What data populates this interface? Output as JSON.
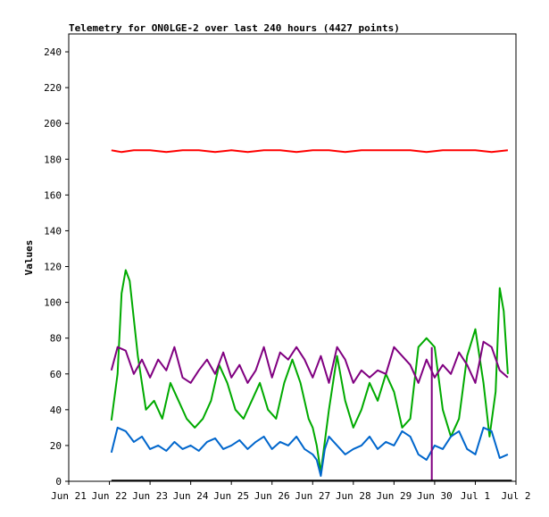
{
  "chart_data": {
    "type": "line",
    "title": "Telemetry for ON0LGE-2 over last 240 hours (4427 points)",
    "xlabel": "",
    "ylabel": "Values",
    "ylim": [
      0,
      250
    ],
    "yticks": [
      0,
      20,
      40,
      60,
      80,
      100,
      120,
      140,
      160,
      180,
      200,
      220,
      240
    ],
    "xlim": [
      0,
      11
    ],
    "xticks": [
      "Jun 21",
      "Jun 22",
      "Jun 23",
      "Jun 24",
      "Jun 25",
      "Jun 26",
      "Jun 27",
      "Jun 28",
      "Jun 29",
      "Jun 30",
      "Jul 1",
      "Jul 2"
    ],
    "grid": false,
    "legend": "none",
    "series": [
      {
        "color": "#ff0000",
        "x": [
          1.05,
          1.3,
          1.6,
          2.0,
          2.4,
          2.8,
          3.2,
          3.6,
          4.0,
          4.4,
          4.8,
          5.2,
          5.6,
          6.0,
          6.4,
          6.8,
          7.2,
          7.6,
          8.0,
          8.4,
          8.8,
          9.2,
          9.6,
          10.0,
          10.4,
          10.8
        ],
        "y": [
          185,
          184,
          185,
          185,
          184,
          185,
          185,
          184,
          185,
          184,
          185,
          185,
          184,
          185,
          185,
          184,
          185,
          185,
          185,
          185,
          184,
          185,
          185,
          185,
          184,
          185
        ]
      },
      {
        "color": "#00aa00",
        "x": [
          1.05,
          1.2,
          1.3,
          1.4,
          1.5,
          1.7,
          1.9,
          2.1,
          2.3,
          2.5,
          2.7,
          2.9,
          3.1,
          3.3,
          3.5,
          3.7,
          3.9,
          4.1,
          4.3,
          4.5,
          4.7,
          4.9,
          5.1,
          5.3,
          5.5,
          5.7,
          5.9,
          6.0,
          6.1,
          6.2,
          6.4,
          6.6,
          6.8,
          7.0,
          7.2,
          7.4,
          7.6,
          7.8,
          8.0,
          8.2,
          8.4,
          8.6,
          8.8,
          9.0,
          9.2,
          9.4,
          9.6,
          9.8,
          10.0,
          10.2,
          10.35,
          10.5,
          10.6,
          10.7,
          10.8
        ],
        "y": [
          34,
          60,
          105,
          118,
          112,
          70,
          40,
          45,
          35,
          55,
          45,
          35,
          30,
          35,
          45,
          65,
          55,
          40,
          35,
          45,
          55,
          40,
          35,
          55,
          68,
          55,
          35,
          30,
          20,
          5,
          40,
          70,
          45,
          30,
          40,
          55,
          45,
          60,
          50,
          30,
          35,
          75,
          80,
          75,
          40,
          25,
          35,
          70,
          85,
          55,
          25,
          50,
          108,
          95,
          60
        ]
      },
      {
        "color": "#800080",
        "x": [
          1.05,
          1.2,
          1.4,
          1.6,
          1.8,
          2.0,
          2.2,
          2.4,
          2.6,
          2.8,
          3.0,
          3.2,
          3.4,
          3.6,
          3.8,
          4.0,
          4.2,
          4.4,
          4.6,
          4.8,
          5.0,
          5.2,
          5.4,
          5.6,
          5.8,
          6.0,
          6.2,
          6.4,
          6.6,
          6.8,
          7.0,
          7.2,
          7.4,
          7.6,
          7.8,
          8.0,
          8.2,
          8.4,
          8.6,
          8.8,
          9.0,
          9.2,
          9.4,
          9.6,
          9.8,
          10.0,
          10.2,
          10.4,
          10.6,
          10.8
        ],
        "y": [
          62,
          75,
          73,
          60,
          68,
          58,
          68,
          62,
          75,
          58,
          55,
          62,
          68,
          60,
          72,
          58,
          65,
          55,
          62,
          75,
          58,
          72,
          68,
          75,
          68,
          58,
          70,
          55,
          75,
          68,
          55,
          62,
          58,
          62,
          60,
          75,
          70,
          65,
          55,
          68,
          58,
          65,
          60,
          72,
          65,
          55,
          78,
          75,
          62,
          58
        ]
      },
      {
        "color": "#0066cc",
        "x": [
          1.05,
          1.2,
          1.4,
          1.6,
          1.8,
          2.0,
          2.2,
          2.4,
          2.6,
          2.8,
          3.0,
          3.2,
          3.4,
          3.6,
          3.8,
          4.0,
          4.2,
          4.4,
          4.6,
          4.8,
          5.0,
          5.2,
          5.4,
          5.6,
          5.8,
          6.0,
          6.1,
          6.2,
          6.3,
          6.4,
          6.6,
          6.8,
          7.0,
          7.2,
          7.4,
          7.6,
          7.8,
          8.0,
          8.2,
          8.4,
          8.6,
          8.8,
          9.0,
          9.2,
          9.4,
          9.6,
          9.8,
          10.0,
          10.2,
          10.4,
          10.6,
          10.8
        ],
        "y": [
          16,
          30,
          28,
          22,
          25,
          18,
          20,
          17,
          22,
          18,
          20,
          17,
          22,
          24,
          18,
          20,
          23,
          18,
          22,
          25,
          18,
          22,
          20,
          25,
          18,
          15,
          12,
          3,
          18,
          25,
          20,
          15,
          18,
          20,
          25,
          18,
          22,
          20,
          28,
          25,
          15,
          12,
          20,
          18,
          25,
          28,
          18,
          15,
          30,
          28,
          13,
          15
        ]
      },
      {
        "color": "#800080",
        "x": [
          8.93,
          8.93
        ],
        "y": [
          0,
          75
        ]
      },
      {
        "color": "#000000",
        "x": [
          1.05,
          10.9
        ],
        "y": [
          0.4,
          0.4
        ]
      }
    ]
  }
}
